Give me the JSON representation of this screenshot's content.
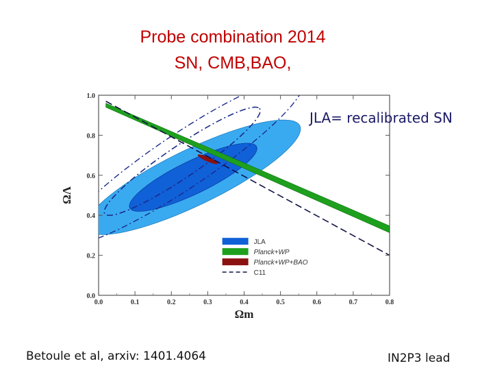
{
  "slide": {
    "title_line1": "Probe combination 2014",
    "title_line2": "SN, CMB,BAO,",
    "jla_note": "JLA= recalibrated SN",
    "citation": "Betoule et al, arxiv: 1401.4064",
    "footer": "IN2P3 lead"
  },
  "colors": {
    "jla_outer": "#3aaaf0",
    "jla_inner": "#1060d8",
    "planck_wp": "#1ea01e",
    "planck_wp_bao": "#8b1010",
    "c11": "#111144",
    "contour_inner_dash": "#1a2a8a"
  },
  "chart_data": {
    "type": "contour",
    "title": "",
    "xlabel": "Ωm",
    "ylabel": "ΩΛ",
    "xlim": [
      0.0,
      0.8
    ],
    "ylim": [
      0.0,
      1.0
    ],
    "xticks": [
      "0.0",
      "0.1",
      "0.2",
      "0.3",
      "0.4",
      "0.5",
      "0.6",
      "0.7",
      "0.8"
    ],
    "yticks": [
      "0.0",
      "0.2",
      "0.4",
      "0.6",
      "0.8",
      "1.0"
    ],
    "legend_position": "bottom-right",
    "legend": [
      "JLA",
      "Planck+WP",
      "Planck+WP+BAO",
      "C11"
    ],
    "series": [
      {
        "name": "JLA",
        "kind": "ellipse-2sigma",
        "center": [
          0.26,
          0.59
        ],
        "semi_major": 0.395,
        "semi_minor": 0.115,
        "angle_deg": 44
      },
      {
        "name": "JLA",
        "kind": "ellipse-1sigma",
        "center": [
          0.26,
          0.59
        ],
        "semi_major": 0.235,
        "semi_minor": 0.068,
        "angle_deg": 44
      },
      {
        "name": "Planck+WP",
        "kind": "degeneracy-band",
        "x": [
          0.02,
          0.8
        ],
        "y": [
          0.95,
          0.33
        ]
      },
      {
        "name": "Planck+WP+BAO",
        "kind": "region",
        "center": [
          0.3,
          0.68
        ]
      },
      {
        "name": "C11",
        "kind": "line",
        "x": [
          0.02,
          0.8
        ],
        "y": [
          0.97,
          0.2
        ]
      },
      {
        "name": "C11",
        "kind": "ellipse-dashdot-1sigma",
        "center": [
          0.23,
          0.67
        ],
        "semi_major": 0.34,
        "semi_minor": 0.06,
        "angle_deg": 52
      }
    ]
  }
}
